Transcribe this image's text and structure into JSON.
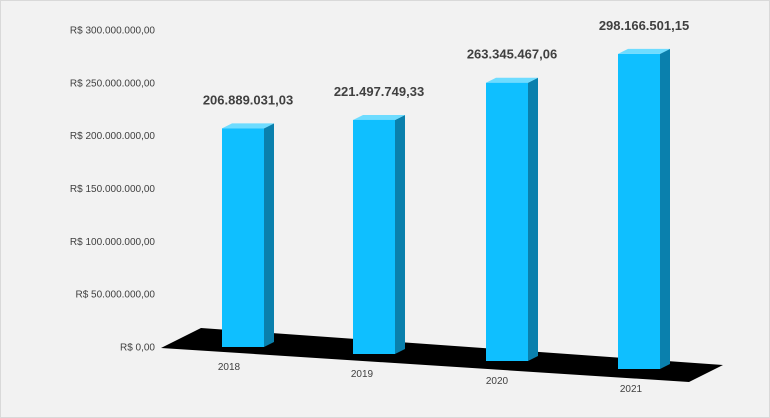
{
  "chart_data": {
    "type": "bar",
    "title": "",
    "xlabel": "",
    "ylabel": "",
    "categories": [
      "2018",
      "2019",
      "2020",
      "2021"
    ],
    "values": [
      206889031.03,
      221497749.33,
      263345467.06,
      298166501.15
    ],
    "data_labels": [
      "206.889.031,03",
      "221.497.749,33",
      "263.345.467,06",
      "298.166.501,15"
    ],
    "y_ticks": [
      {
        "value": 0,
        "label": "R$ 0,00"
      },
      {
        "value": 50000000,
        "label": "R$ 50.000.000,00"
      },
      {
        "value": 100000000,
        "label": "R$ 100.000.000,00"
      },
      {
        "value": 150000000,
        "label": "R$ 150.000.000,00"
      },
      {
        "value": 200000000,
        "label": "R$ 200.000.000,00"
      },
      {
        "value": 250000000,
        "label": "R$ 250.000.000,00"
      },
      {
        "value": 300000000,
        "label": "R$ 300.000.000,00"
      }
    ],
    "ylim": [
      0,
      300000000
    ],
    "grid": false,
    "legend": "none",
    "style": "3d-column",
    "colors": {
      "bar_front": "#0fbfff",
      "bar_side": "#0a80ad",
      "bar_top": "#6edcff",
      "floor": "#000000",
      "background": "#f2f2f2"
    }
  }
}
